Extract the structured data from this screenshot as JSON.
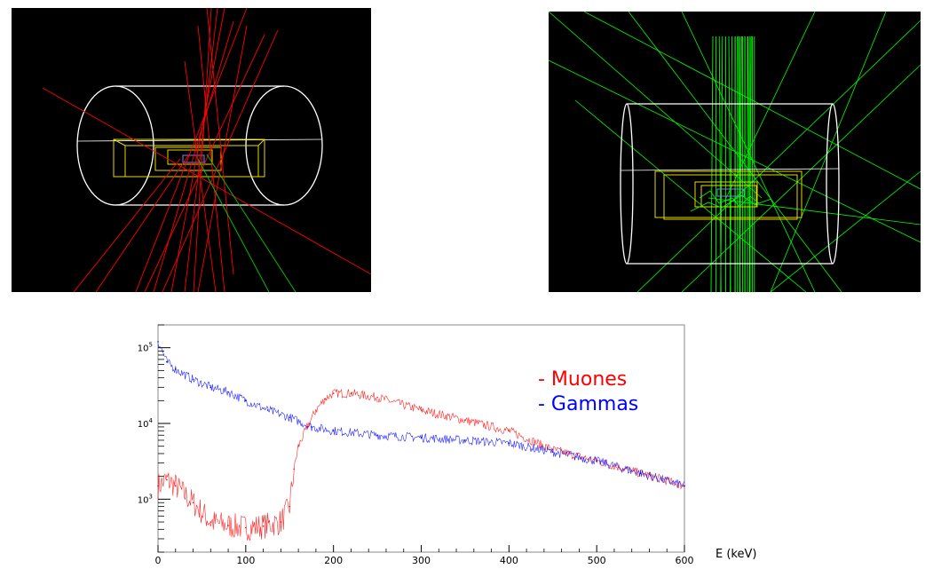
{
  "scene_left": {
    "colors": {
      "background": "#000000",
      "detector_outline": "#ffffff",
      "inner_volume": "#ffff00",
      "track_primary": "#ff0000",
      "track_secondary": "#00cc00"
    }
  },
  "scene_right": {
    "colors": {
      "background": "#000000",
      "detector_outline": "#ffffff",
      "inner_volume": "#ffff00",
      "track_primary": "#00ff00"
    }
  },
  "chart_data": {
    "type": "line",
    "title": "",
    "xlabel": "E (keV)",
    "ylabel": "",
    "xlim": [
      0,
      600
    ],
    "ylim": [
      200,
      200000
    ],
    "y_scale": "log",
    "x_ticks": [
      "0",
      "100",
      "200",
      "300",
      "400",
      "500",
      "600"
    ],
    "y_ticks": [
      {
        "base": "10",
        "exp": "3",
        "value": 1000
      },
      {
        "base": "10",
        "exp": "4",
        "value": 10000
      },
      {
        "base": "10",
        "exp": "5",
        "value": 100000
      }
    ],
    "legend": {
      "placement": "top-right"
    },
    "series": [
      {
        "name": "- Muones",
        "color": "#ff0000",
        "x": [
          0,
          10,
          20,
          40,
          60,
          80,
          100,
          120,
          140,
          150,
          155,
          160,
          170,
          180,
          190,
          200,
          220,
          250,
          300,
          350,
          400,
          450,
          500,
          550,
          600
        ],
        "y": [
          1500,
          1800,
          1500,
          900,
          500,
          450,
          420,
          440,
          500,
          800,
          2500,
          5000,
          9000,
          15000,
          21000,
          25000,
          25000,
          22000,
          15000,
          11000,
          8000,
          4500,
          3200,
          2200,
          1500
        ]
      },
      {
        "name": "- Gammas",
        "color": "#0000ff",
        "x": [
          0,
          5,
          10,
          20,
          40,
          60,
          80,
          100,
          125,
          150,
          175,
          200,
          250,
          300,
          350,
          400,
          450,
          500,
          550,
          600
        ],
        "y": [
          120000,
          90000,
          65000,
          52000,
          38000,
          30000,
          26000,
          20000,
          15000,
          12000,
          9000,
          8000,
          7000,
          6500,
          6000,
          5500,
          4200,
          3200,
          2200,
          1500
        ]
      }
    ]
  }
}
